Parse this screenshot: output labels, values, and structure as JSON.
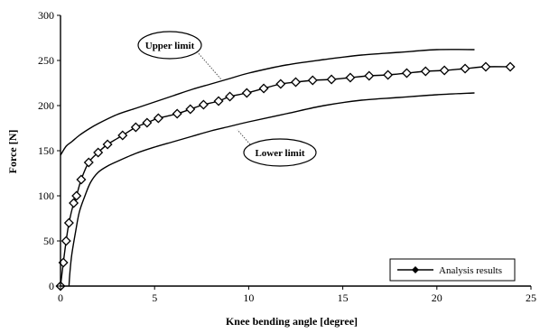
{
  "chart_data": {
    "type": "line",
    "xlabel": "Knee bending angle [degree]",
    "ylabel": "Force [N]",
    "xlim": [
      0,
      25
    ],
    "ylim": [
      0,
      300
    ],
    "xticks": [
      0,
      5,
      10,
      15,
      20,
      25
    ],
    "yticks": [
      0,
      50,
      100,
      150,
      200,
      250,
      300
    ],
    "grid": false,
    "legend": {
      "position": "bottom-right",
      "entries": [
        "Analysis results"
      ]
    },
    "annotations": [
      {
        "text": "Upper limit",
        "points_to_series": "upper"
      },
      {
        "text": "Lower limit",
        "points_to_series": "lower"
      }
    ],
    "series": [
      {
        "key": "upper",
        "style": "solid",
        "x": [
          0,
          0.3,
          0.6,
          1.0,
          1.5,
          2.0,
          3.0,
          4.0,
          5.0,
          6.0,
          7.0,
          8.0,
          9.0,
          10.0,
          12.0,
          14.0,
          16.0,
          18.0,
          20.0,
          22.0
        ],
        "y": [
          145,
          155,
          160,
          167,
          174,
          180,
          190,
          197,
          204,
          211,
          218,
          224,
          230,
          236,
          245,
          251,
          256,
          259,
          262,
          262
        ]
      },
      {
        "key": "lower",
        "style": "solid",
        "x": [
          0.45,
          0.5,
          0.6,
          0.8,
          1.0,
          1.3,
          1.6,
          2.0,
          2.5,
          3.0,
          4.0,
          5.0,
          6.0,
          7.0,
          8.0,
          9.0,
          10.0,
          12.0,
          14.0,
          16.0,
          18.0,
          20.0,
          22.0
        ],
        "y": [
          0,
          15,
          35,
          60,
          82,
          100,
          115,
          126,
          133,
          138,
          147,
          154,
          160,
          166,
          172,
          177,
          182,
          191,
          200,
          206,
          209,
          212,
          214
        ]
      },
      {
        "key": "analysis",
        "name": "Analysis results",
        "style": "line-diamond-markers",
        "x": [
          0,
          0.15,
          0.3,
          0.45,
          0.7,
          0.85,
          1.1,
          1.5,
          2.0,
          2.5,
          3.3,
          4.0,
          4.6,
          5.2,
          6.2,
          6.9,
          7.6,
          8.4,
          9.0,
          9.9,
          10.8,
          11.7,
          12.5,
          13.4,
          14.4,
          15.4,
          16.4,
          17.4,
          18.4,
          19.4,
          20.4,
          21.5,
          22.6,
          23.9
        ],
        "y": [
          0,
          26,
          50,
          70,
          92,
          100,
          118,
          137,
          148,
          157,
          167,
          176,
          181,
          186,
          191,
          196,
          201,
          205,
          210,
          214,
          219,
          224,
          226,
          228,
          229,
          231,
          233,
          234,
          236,
          238,
          239,
          241,
          243,
          243
        ]
      }
    ]
  }
}
